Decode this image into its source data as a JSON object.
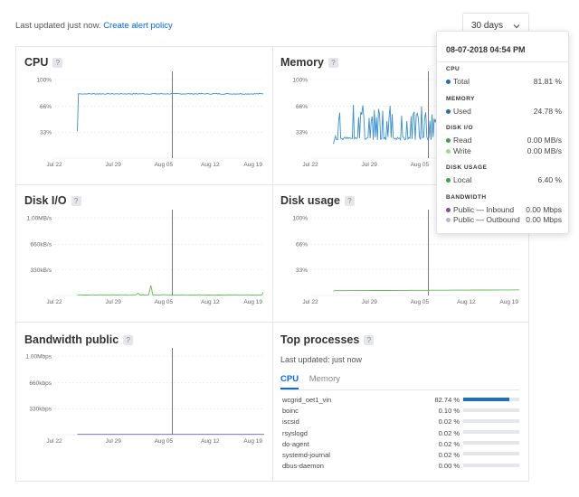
{
  "header": {
    "updated_text": "Last updated just now.",
    "alert_link": "Create alert policy",
    "range": "30 days"
  },
  "x_ticks": [
    "Jul 22",
    "Jul 29",
    "Aug 05",
    "Aug 12",
    "Aug 19"
  ],
  "panels": {
    "cpu": {
      "title": "CPU",
      "help": "?",
      "y_ticks": [
        "100%",
        "66%",
        "33%"
      ]
    },
    "memory": {
      "title": "Memory",
      "help": "?",
      "y_ticks": [
        "100%",
        "66%",
        "33%"
      ]
    },
    "disk_io": {
      "title": "Disk I/O",
      "help": "?",
      "y_ticks": [
        "1.00MB/s",
        "660kB/s",
        "330kB/s"
      ]
    },
    "disk_usage": {
      "title": "Disk usage",
      "help": "?",
      "y_ticks": [
        "100%",
        "66%",
        "33%"
      ]
    },
    "bandwidth": {
      "title": "Bandwidth public",
      "help": "?",
      "y_ticks": [
        "1.00Mbps",
        "660kbps",
        "330kbps"
      ]
    }
  },
  "top_processes": {
    "title": "Top processes",
    "help": "?",
    "updated": "Last updated: just now",
    "tabs": [
      "CPU",
      "Memory"
    ],
    "rows": [
      {
        "name": "wcgrid_oet1_vin",
        "value": "82.74 %",
        "pct": 82.74
      },
      {
        "name": "boinc",
        "value": "0.10 %",
        "pct": 0.1
      },
      {
        "name": "iscsid",
        "value": "0.02 %",
        "pct": 0.02
      },
      {
        "name": "rsyslogd",
        "value": "0.02 %",
        "pct": 0.02
      },
      {
        "name": "do-agent",
        "value": "0.02 %",
        "pct": 0.02
      },
      {
        "name": "systemd-journal",
        "value": "0.02 %",
        "pct": 0.02
      },
      {
        "name": "dbus-daemon",
        "value": "0.00 %",
        "pct": 0.0
      }
    ]
  },
  "tooltip": {
    "timestamp": "08-07-2018 04:54 PM",
    "sections": [
      {
        "caption": "CPU",
        "rows": [
          {
            "label": "Total",
            "value": "81.81 %",
            "color": "#1f6fb4"
          }
        ]
      },
      {
        "caption": "MEMORY",
        "rows": [
          {
            "label": "Used",
            "value": "24.78 %",
            "color": "#1f6fb4"
          }
        ]
      },
      {
        "caption": "DISK I/O",
        "rows": [
          {
            "label": "Read",
            "value": "0.00 MB/s",
            "color": "#3aa547"
          },
          {
            "label": "Write",
            "value": "0.00 MB/s",
            "color": "#9fd88f"
          }
        ]
      },
      {
        "caption": "DISK USAGE",
        "rows": [
          {
            "label": "Local",
            "value": "6.40 %",
            "color": "#3aa547"
          }
        ]
      },
      {
        "caption": "BANDWIDTH",
        "rows": [
          {
            "label": "Public — Inbound",
            "value": "0.00 Mbps",
            "color": "#7b4fa6"
          },
          {
            "label": "Public — Outbound",
            "value": "0.00 Mbps",
            "color": "#b9b3d8"
          }
        ]
      }
    ]
  },
  "colors": {
    "cpu": "#3a8fd0",
    "memory": "#3a8fd0",
    "disk_io": "#5dbb4e",
    "disk_usage": "#5dbb4e",
    "bandwidth": "#6b5bb5",
    "link": "#0069ff"
  }
}
